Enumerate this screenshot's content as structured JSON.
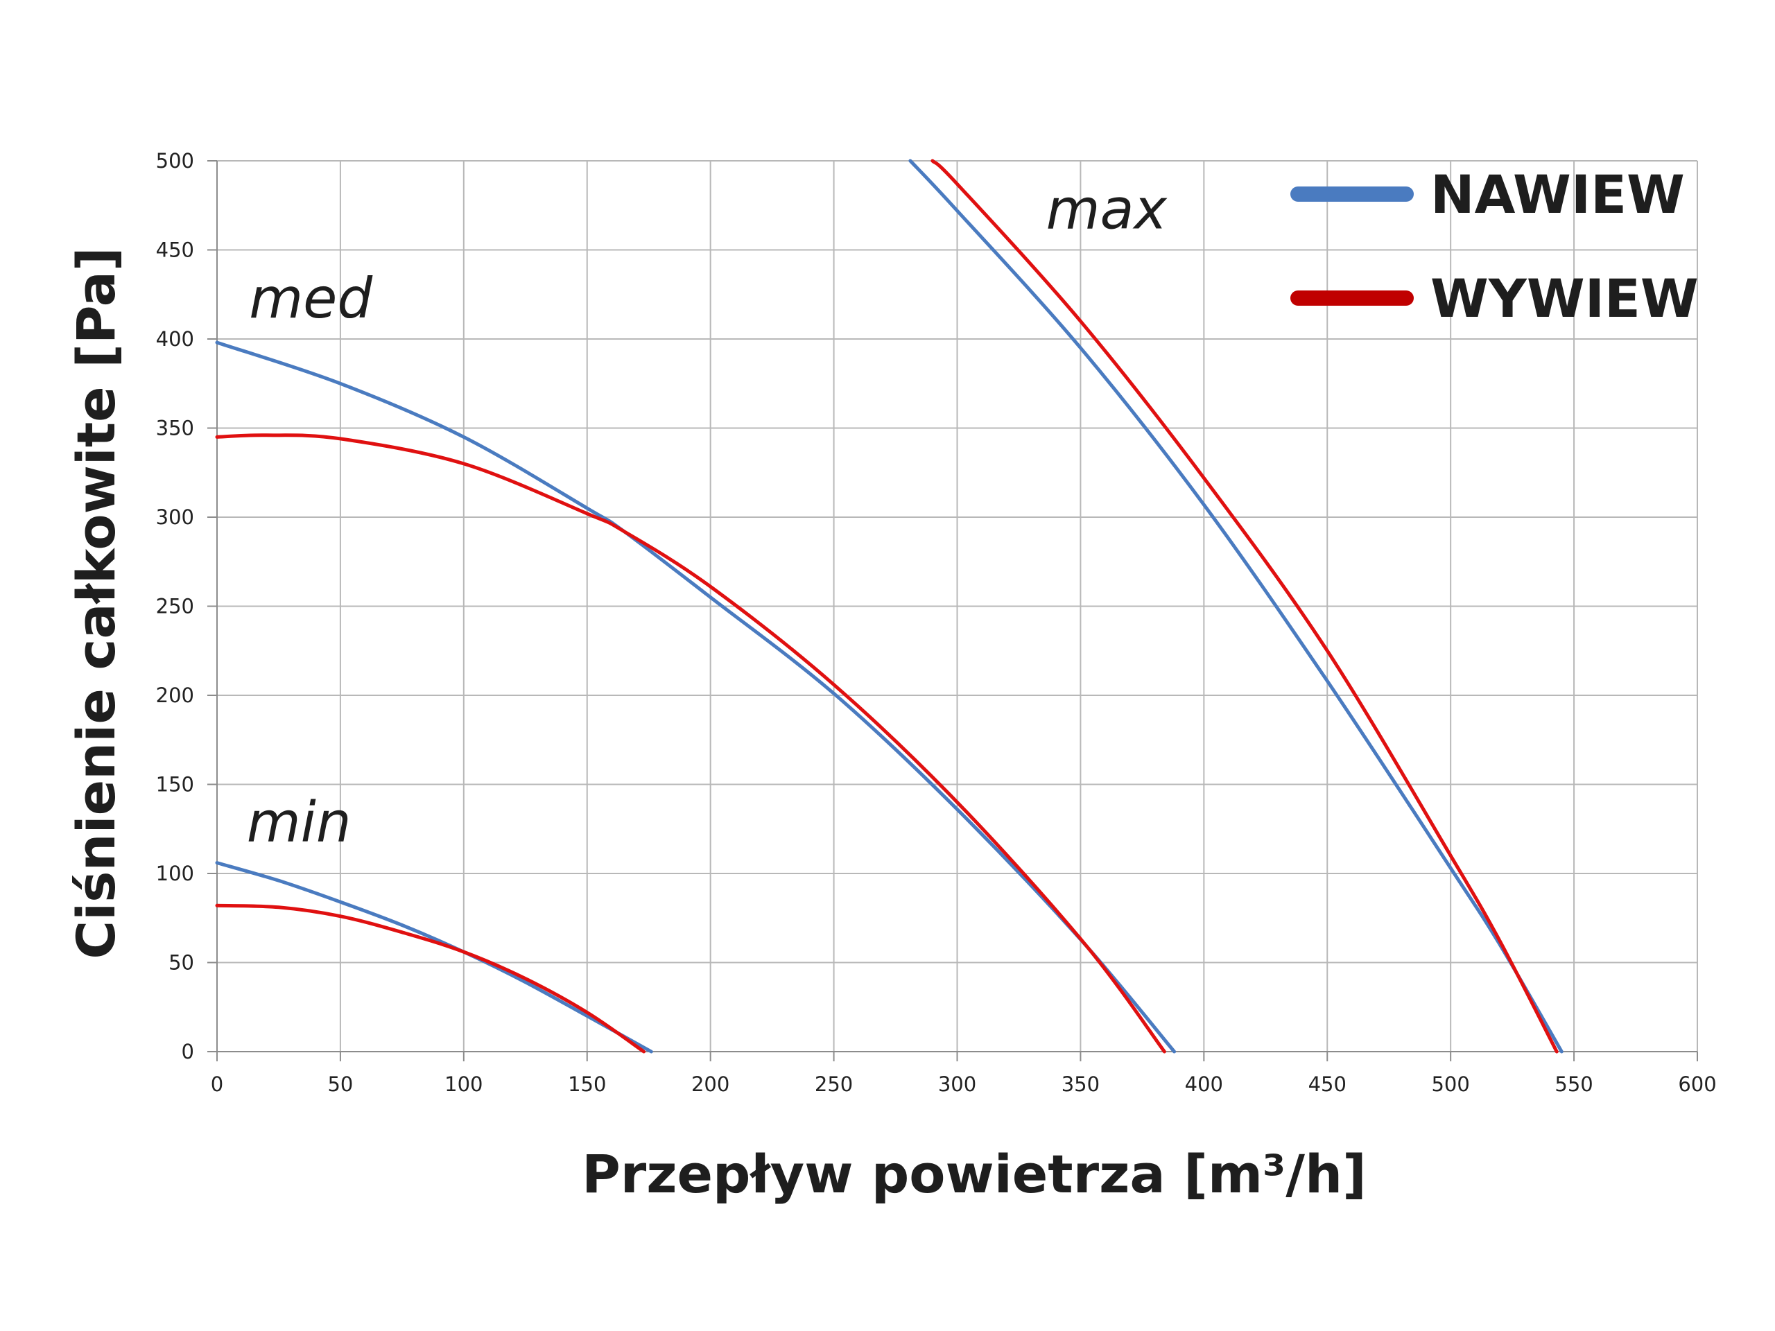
{
  "chart_data": {
    "type": "line",
    "xlabel": "Przepływ powietrza [m³/h]",
    "ylabel": "Ciśnienie całkowite [Pa]",
    "xlim": [
      0,
      600
    ],
    "ylim": [
      0,
      500
    ],
    "xticks": [
      0,
      50,
      100,
      150,
      200,
      250,
      300,
      350,
      400,
      450,
      500,
      550,
      600
    ],
    "yticks": [
      0,
      50,
      100,
      150,
      200,
      250,
      300,
      350,
      400,
      450,
      500
    ],
    "grid": true,
    "legend_position": "top-right",
    "colors": {
      "nawiew": "#4a7bc0",
      "wywiew": "#e01010",
      "wywiew_legend": "#c00000"
    },
    "legend": [
      {
        "name": "NAWIEW",
        "color": "#4a7bc0"
      },
      {
        "name": "WYWIEW",
        "color": "#c00000"
      }
    ],
    "annotations": [
      {
        "text": "min",
        "x": 12,
        "y": 118
      },
      {
        "text": "med",
        "x": 13,
        "y": 412
      },
      {
        "text": "max",
        "x": 336,
        "y": 462
      }
    ],
    "series": [
      {
        "name": "NAWIEW",
        "group": "min",
        "color": "#4a7bc0",
        "points": [
          [
            0,
            106
          ],
          [
            25,
            96
          ],
          [
            50,
            84
          ],
          [
            75,
            71
          ],
          [
            100,
            56
          ],
          [
            125,
            39
          ],
          [
            150,
            20
          ],
          [
            176,
            0
          ]
        ]
      },
      {
        "name": "WYWIEW",
        "group": "min",
        "color": "#e01010",
        "points": [
          [
            0,
            82
          ],
          [
            25,
            81
          ],
          [
            50,
            76
          ],
          [
            75,
            67
          ],
          [
            100,
            56
          ],
          [
            125,
            41
          ],
          [
            150,
            22
          ],
          [
            173,
            0
          ]
        ]
      },
      {
        "name": "NAWIEW",
        "group": "med",
        "color": "#4a7bc0",
        "points": [
          [
            0,
            398
          ],
          [
            50,
            375
          ],
          [
            100,
            345
          ],
          [
            150,
            305
          ],
          [
            165,
            292
          ],
          [
            200,
            255
          ],
          [
            250,
            201
          ],
          [
            300,
            136
          ],
          [
            350,
            63
          ],
          [
            388,
            0
          ]
        ]
      },
      {
        "name": "WYWIEW",
        "group": "med",
        "color": "#e01010",
        "points": [
          [
            0,
            345
          ],
          [
            20,
            346
          ],
          [
            50,
            344
          ],
          [
            100,
            330
          ],
          [
            150,
            302
          ],
          [
            165,
            292
          ],
          [
            200,
            261
          ],
          [
            250,
            206
          ],
          [
            300,
            140
          ],
          [
            352,
            60
          ],
          [
            384,
            0
          ]
        ]
      },
      {
        "name": "NAWIEW",
        "group": "max",
        "color": "#4a7bc0",
        "points": [
          [
            281,
            500
          ],
          [
            300,
            472
          ],
          [
            350,
            395
          ],
          [
            400,
            307
          ],
          [
            450,
            208
          ],
          [
            500,
            103
          ],
          [
            520,
            60
          ],
          [
            545,
            0
          ]
        ]
      },
      {
        "name": "WYWIEW",
        "group": "max",
        "color": "#e01010",
        "points": [
          [
            290,
            500
          ],
          [
            300,
            487
          ],
          [
            350,
            410
          ],
          [
            400,
            322
          ],
          [
            450,
            225
          ],
          [
            500,
            110
          ],
          [
            520,
            62
          ],
          [
            543,
            0
          ]
        ]
      }
    ]
  }
}
